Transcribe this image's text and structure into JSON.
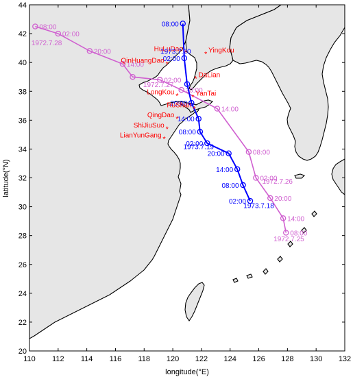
{
  "xlabel": "longitude(°E)",
  "ylabel": "latitude(°N)",
  "xticks": [
    "110",
    "112",
    "114",
    "116",
    "118",
    "120",
    "122",
    "124",
    "126",
    "128",
    "130",
    "132"
  ],
  "yticks": [
    "20",
    "22",
    "24",
    "26",
    "28",
    "30",
    "32",
    "34",
    "36",
    "38",
    "40",
    "42",
    "44"
  ],
  "colors": {
    "track_1973": "#0000ff",
    "track_1972": "#d060d0",
    "stations": "#ff0000",
    "land": "#e6e6e6",
    "coast": "#000000"
  },
  "stations": [
    {
      "name": "HuLuDao",
      "lon": 120.9,
      "lat": 40.7
    },
    {
      "name": "YingKou",
      "lon": 122.3,
      "lat": 40.6
    },
    {
      "name": "QinHuangDao",
      "lon": 119.6,
      "lat": 39.9
    },
    {
      "name": "DaLian",
      "lon": 121.6,
      "lat": 38.9
    },
    {
      "name": "LongKou",
      "lon": 120.3,
      "lat": 37.7
    },
    {
      "name": "YanTai",
      "lon": 121.4,
      "lat": 37.6
    },
    {
      "name": "RuShan",
      "lon": 121.5,
      "lat": 36.8
    },
    {
      "name": "QingDao",
      "lon": 120.3,
      "lat": 36.1
    },
    {
      "name": "ShiJiuSuo",
      "lon": 119.6,
      "lat": 35.4
    },
    {
      "name": "LianYunGang",
      "lon": 119.4,
      "lat": 34.7
    }
  ],
  "track_1973": [
    {
      "lon": 125.4,
      "lat": 30.4,
      "label": "02:00"
    },
    {
      "lon": 124.9,
      "lat": 31.5,
      "label": "08:00"
    },
    {
      "lon": 124.5,
      "lat": 32.6,
      "label": "14:00"
    },
    {
      "lon": 123.9,
      "lat": 33.7,
      "label": "20:00"
    },
    {
      "lon": 122.4,
      "lat": 34.4,
      "label": "02:00"
    },
    {
      "lon": 121.9,
      "lat": 35.2,
      "label": "08:00"
    },
    {
      "lon": 121.8,
      "lat": 36.1,
      "label": "14:00"
    },
    {
      "lon": 121.3,
      "lat": 37.2,
      "label": "20:00"
    },
    {
      "lon": 121.0,
      "lat": 38.5,
      "label": ""
    },
    {
      "lon": 120.8,
      "lat": 40.3,
      "label": "02:00"
    },
    {
      "lon": 120.7,
      "lat": 42.7,
      "label": "08:00"
    }
  ],
  "track_1972": [
    {
      "lon": 127.9,
      "lat": 28.2,
      "label": "08:00"
    },
    {
      "lon": 127.7,
      "lat": 29.2,
      "label": "14:00"
    },
    {
      "lon": 126.8,
      "lat": 30.6,
      "label": "20:00"
    },
    {
      "lon": 125.8,
      "lat": 32.0,
      "label": "02:00"
    },
    {
      "lon": 125.3,
      "lat": 33.8,
      "label": "08:00"
    },
    {
      "lon": 123.1,
      "lat": 36.8,
      "label": "14:00"
    },
    {
      "lon": 120.6,
      "lat": 38.1,
      "label": "20:00"
    },
    {
      "lon": 119.1,
      "lat": 38.8,
      "label": "02:00"
    },
    {
      "lon": 117.2,
      "lat": 39.0,
      "label": ""
    },
    {
      "lon": 116.5,
      "lat": 39.9,
      "label": "14:00"
    },
    {
      "lon": 114.2,
      "lat": 40.8,
      "label": "20:00"
    },
    {
      "lon": 112.0,
      "lat": 42.0,
      "label": "02:00"
    },
    {
      "lon": 110.4,
      "lat": 42.5,
      "label": "08:00"
    }
  ],
  "date_labels": [
    {
      "text": "1973.7.18",
      "lon": 126.0,
      "lat": 29.9,
      "track": "1973"
    },
    {
      "text": "1973.7.19",
      "lon": 121.8,
      "lat": 34.0,
      "track": "1973"
    },
    {
      "text": "1973.7.20",
      "lon": 120.2,
      "lat": 40.6,
      "track": "1973"
    },
    {
      "text": "1972.7.25",
      "lon": 128.1,
      "lat": 27.6,
      "track": "1972"
    },
    {
      "text": "1972.7.26",
      "lon": 127.3,
      "lat": 31.6,
      "track": "1972"
    },
    {
      "text": "1972.7.27",
      "lon": 119.0,
      "lat": 38.3,
      "track": "1972"
    },
    {
      "text": "1972.7.28",
      "lon": 111.2,
      "lat": 41.2,
      "track": "1972"
    }
  ]
}
